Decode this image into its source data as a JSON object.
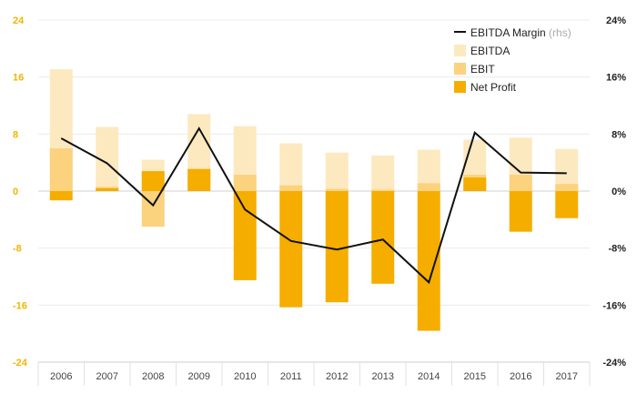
{
  "chart_data": {
    "type": "bar",
    "categories": [
      "2006",
      "2007",
      "2008",
      "2009",
      "2010",
      "2011",
      "2012",
      "2013",
      "2014",
      "2015",
      "2016",
      "2017"
    ],
    "series": [
      {
        "name": "EBITDA",
        "kind": "bar",
        "axis": "left",
        "color": "#fde9c0",
        "values": [
          17.1,
          9.0,
          4.4,
          10.8,
          9.1,
          6.7,
          5.4,
          5.0,
          5.8,
          7.2,
          7.5,
          5.9
        ]
      },
      {
        "name": "EBIT",
        "kind": "bar",
        "axis": "left",
        "color": "#fbd27e",
        "values": [
          6.0,
          0.6,
          -5.0,
          3.1,
          2.3,
          0.8,
          0.3,
          0.2,
          1.1,
          2.3,
          2.3,
          1.0
        ]
      },
      {
        "name": "Net Profit",
        "kind": "bar",
        "axis": "left",
        "color": "#f5ad00",
        "values": [
          -1.3,
          0.4,
          2.8,
          3.1,
          -12.5,
          -16.3,
          -15.6,
          -13.0,
          -19.6,
          1.9,
          -5.7,
          -3.8
        ]
      },
      {
        "name": "EBITDA Margin",
        "kind": "line",
        "axis": "right",
        "color": "#111111",
        "values": [
          7.4,
          3.9,
          -2.0,
          8.8,
          -2.6,
          -7.0,
          -8.2,
          -6.8,
          -12.8,
          8.2,
          2.6,
          2.5
        ]
      }
    ],
    "legend_note": "(rhs)",
    "y_left": {
      "ticks": [
        "24",
        "16",
        "8",
        "0",
        "-8",
        "-16",
        "-24"
      ],
      "ylim": [
        -24,
        24
      ],
      "color": "#f2b400"
    },
    "y_right": {
      "ticks": [
        "24%",
        "16%",
        "8%",
        "0%",
        "-8%",
        "-16%",
        "-24%"
      ],
      "ylim": [
        -24,
        24
      ]
    },
    "grid": true,
    "legend_position": "top-right"
  }
}
